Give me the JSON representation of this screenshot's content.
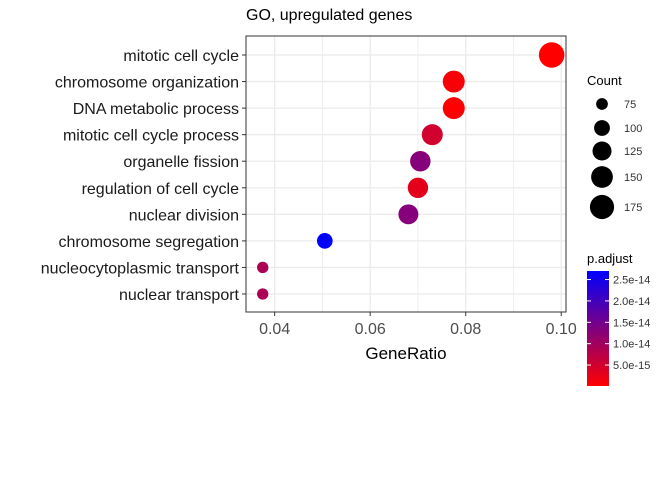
{
  "chart_data": {
    "type": "scatter",
    "title": "GO, upregulated genes",
    "xlabel": "GeneRatio",
    "ylabel": "",
    "xlim": [
      0.034,
      0.101
    ],
    "xticks": [
      0.04,
      0.06,
      0.08,
      0.1
    ],
    "xtick_labels": [
      "0.04",
      "0.06",
      "0.08",
      "0.10"
    ],
    "grid": true,
    "categories": [
      "mitotic cell cycle",
      "chromosome organization",
      "DNA metabolic process",
      "mitotic cell cycle process",
      "organelle fission",
      "regulation of cell cycle",
      "nuclear division",
      "chromosome segregation",
      "nucleocytoplasmic transport",
      "nuclear transport"
    ],
    "points": [
      {
        "term": "mitotic cell cycle",
        "gene_ratio": 0.098,
        "count": 190,
        "p_adjust": 5e-17
      },
      {
        "term": "chromosome organization",
        "gene_ratio": 0.0775,
        "count": 152,
        "p_adjust": 8e-16
      },
      {
        "term": "DNA metabolic process",
        "gene_ratio": 0.0775,
        "count": 152,
        "p_adjust": 3e-16
      },
      {
        "term": "mitotic cell cycle process",
        "gene_ratio": 0.073,
        "count": 143,
        "p_adjust": 5e-15
      },
      {
        "term": "organelle fission",
        "gene_ratio": 0.0705,
        "count": 138,
        "p_adjust": 1.3e-14
      },
      {
        "term": "regulation of cell cycle",
        "gene_ratio": 0.07,
        "count": 137,
        "p_adjust": 3e-15
      },
      {
        "term": "nuclear division",
        "gene_ratio": 0.068,
        "count": 133,
        "p_adjust": 1.3e-14
      },
      {
        "term": "chromosome segregation",
        "gene_ratio": 0.0505,
        "count": 99,
        "p_adjust": 2.7e-14
      },
      {
        "term": "nucleocytoplasmic transport",
        "gene_ratio": 0.0375,
        "count": 73,
        "p_adjust": 9e-15
      },
      {
        "term": "nuclear transport",
        "gene_ratio": 0.0375,
        "count": 73,
        "p_adjust": 9e-15
      }
    ],
    "legend": {
      "placement": "right",
      "count": {
        "title": "Count",
        "values": [
          75,
          100,
          125,
          150,
          175
        ],
        "labels": [
          "75",
          "100",
          "125",
          "150",
          "175"
        ]
      },
      "p_adjust": {
        "title": "p.adjust",
        "range": [
          1e-16,
          2.7e-14
        ],
        "ticks": [
          2.5e-14,
          2e-14,
          1.5e-14,
          1e-14,
          5e-15
        ],
        "tick_labels": [
          "2.5e-14",
          "2.0e-14",
          "1.5e-14",
          "1.0e-14",
          "5.0e-15"
        ],
        "color_low": "#ff0000",
        "color_high": "#0000ff"
      }
    },
    "panel_background": "#ffffff",
    "grid_color": "#ebebeb",
    "border_color": "#333333"
  }
}
